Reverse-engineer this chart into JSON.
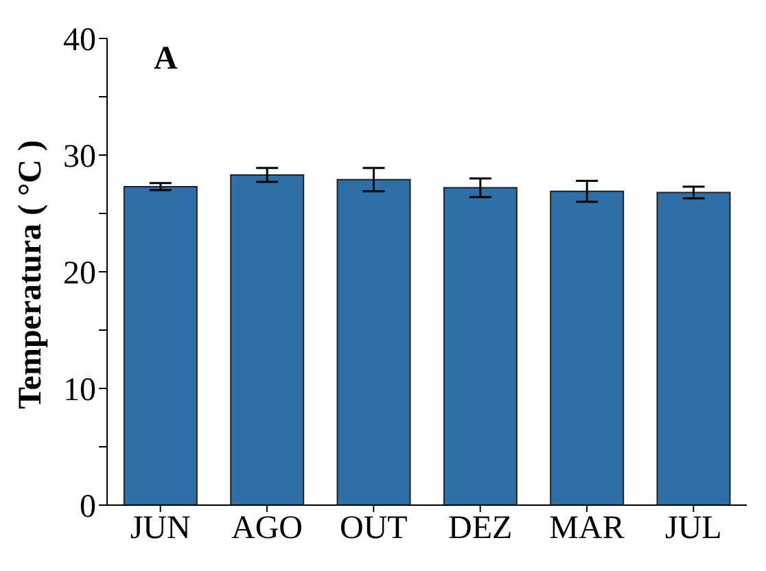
{
  "chart_data": {
    "type": "bar",
    "ylabel": "Temperatura ( °C )",
    "annotations": [
      "A"
    ],
    "categories": [
      "JUN",
      "AGO",
      "OUT",
      "DEZ",
      "MAR",
      "JUL"
    ],
    "values": [
      27.3,
      28.3,
      27.9,
      27.2,
      26.9,
      26.8
    ],
    "errors": [
      0.3,
      0.6,
      1.0,
      0.8,
      0.9,
      0.5
    ],
    "color": "#2e6fa7",
    "ylim": [
      0,
      40
    ],
    "yticks": [
      0,
      {
        "value": 5,
        "label": null
      },
      10,
      {
        "value": 15,
        "label": null
      },
      20,
      {
        "value": 25,
        "label": null
      },
      30,
      {
        "value": 35,
        "label": null
      },
      40
    ],
    "grid": false
  }
}
